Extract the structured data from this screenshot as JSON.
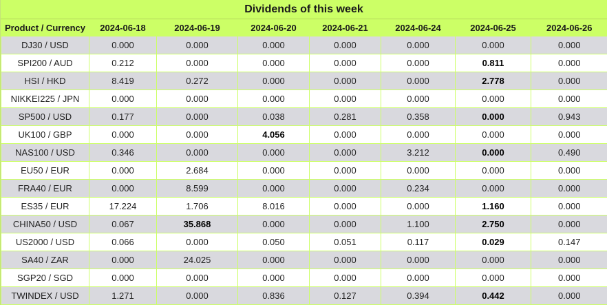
{
  "title": "Dividends of this week",
  "header": [
    "Product / Currency",
    "2024-06-18",
    "2024-06-19",
    "2024-06-20",
    "2024-06-21",
    "2024-06-24",
    "2024-06-25",
    "2024-06-26"
  ],
  "rows": [
    {
      "product": "DJ30 / USD",
      "values": [
        "0.000",
        "0.000",
        "0.000",
        "0.000",
        "0.000",
        "0.000",
        "0.000"
      ],
      "bold": []
    },
    {
      "product": "SPI200 / AUD",
      "values": [
        "0.212",
        "0.000",
        "0.000",
        "0.000",
        "0.000",
        "0.811",
        "0.000"
      ],
      "bold": [
        5
      ]
    },
    {
      "product": "HSI / HKD",
      "values": [
        "8.419",
        "0.272",
        "0.000",
        "0.000",
        "0.000",
        "2.778",
        "0.000"
      ],
      "bold": [
        5
      ]
    },
    {
      "product": "NIKKEI225 / JPN",
      "values": [
        "0.000",
        "0.000",
        "0.000",
        "0.000",
        "0.000",
        "0.000",
        "0.000"
      ],
      "bold": []
    },
    {
      "product": "SP500 / USD",
      "values": [
        "0.177",
        "0.000",
        "0.038",
        "0.281",
        "0.358",
        "0.000",
        "0.943"
      ],
      "bold": [
        5
      ]
    },
    {
      "product": "UK100 / GBP",
      "values": [
        "0.000",
        "0.000",
        "4.056",
        "0.000",
        "0.000",
        "0.000",
        "0.000"
      ],
      "bold": [
        2
      ]
    },
    {
      "product": "NAS100 / USD",
      "values": [
        "0.346",
        "0.000",
        "0.000",
        "0.000",
        "3.212",
        "0.000",
        "0.490"
      ],
      "bold": [
        5
      ]
    },
    {
      "product": "EU50 / EUR",
      "values": [
        "0.000",
        "2.684",
        "0.000",
        "0.000",
        "0.000",
        "0.000",
        "0.000"
      ],
      "bold": []
    },
    {
      "product": "FRA40 / EUR",
      "values": [
        "0.000",
        "8.599",
        "0.000",
        "0.000",
        "0.234",
        "0.000",
        "0.000"
      ],
      "bold": []
    },
    {
      "product": "ES35 / EUR",
      "values": [
        "17.224",
        "1.706",
        "8.016",
        "0.000",
        "0.000",
        "1.160",
        "0.000"
      ],
      "bold": [
        5
      ]
    },
    {
      "product": "CHINA50 / USD",
      "values": [
        "0.067",
        "35.868",
        "0.000",
        "0.000",
        "1.100",
        "2.750",
        "0.000"
      ],
      "bold": [
        1,
        5
      ]
    },
    {
      "product": "US2000 / USD",
      "values": [
        "0.066",
        "0.000",
        "0.050",
        "0.051",
        "0.117",
        "0.029",
        "0.147"
      ],
      "bold": [
        5
      ]
    },
    {
      "product": "SA40 / ZAR",
      "values": [
        "0.000",
        "24.025",
        "0.000",
        "0.000",
        "0.000",
        "0.000",
        "0.000"
      ],
      "bold": []
    },
    {
      "product": "SGP20 / SGD",
      "values": [
        "0.000",
        "0.000",
        "0.000",
        "0.000",
        "0.000",
        "0.000",
        "0.000"
      ],
      "bold": []
    },
    {
      "product": "TWINDEX / USD",
      "values": [
        "1.271",
        "0.000",
        "0.836",
        "0.127",
        "0.394",
        "0.442",
        "0.000"
      ],
      "bold": [
        5
      ]
    }
  ]
}
